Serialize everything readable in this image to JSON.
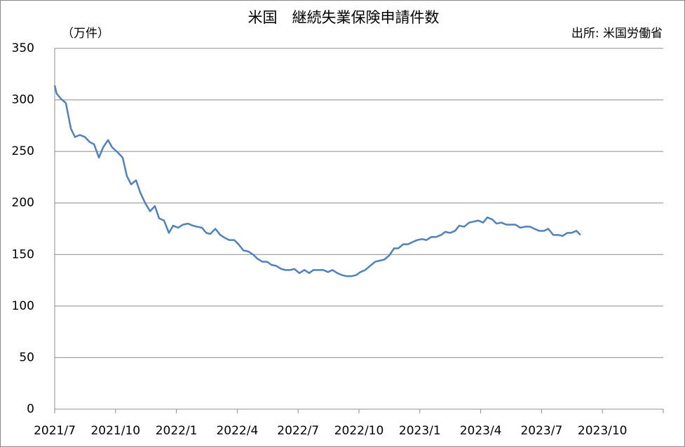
{
  "chart_data": {
    "type": "line",
    "title": "米国　継続失業保険申請件数",
    "y_unit": "（万件）",
    "source": "出所: 米国労働省",
    "ylim": [
      0,
      350
    ],
    "yticks": [
      0,
      50,
      100,
      150,
      200,
      250,
      300,
      350
    ],
    "xlim": [
      0,
      30
    ],
    "xticks": [
      {
        "value": 0,
        "label": "2021/7"
      },
      {
        "value": 3,
        "label": "2021/10"
      },
      {
        "value": 6,
        "label": "2022/1"
      },
      {
        "value": 9,
        "label": "2022/4"
      },
      {
        "value": 12,
        "label": "2022/7"
      },
      {
        "value": 15,
        "label": "2022/10"
      },
      {
        "value": 18,
        "label": "2023/1"
      },
      {
        "value": 21,
        "label": "2023/4"
      },
      {
        "value": 24,
        "label": "2023/7"
      },
      {
        "value": 27,
        "label": "2023/10"
      }
    ],
    "grid": true,
    "series": [
      {
        "name": "継続失業保険申請件数",
        "color": "#4f81bd",
        "x": [
          0,
          0.1,
          0.31,
          0.55,
          0.8,
          1.0,
          1.24,
          1.49,
          1.73,
          1.94,
          2.18,
          2.39,
          2.63,
          2.83,
          3.11,
          3.35,
          3.56,
          3.77,
          4.01,
          4.22,
          4.46,
          4.7,
          4.94,
          5.15,
          5.39,
          5.63,
          5.84,
          6.08,
          6.33,
          6.57,
          6.81,
          7.02,
          7.26,
          7.47,
          7.67,
          7.92,
          8.16,
          8.4,
          8.61,
          8.85,
          9.06,
          9.3,
          9.54,
          9.78,
          9.99,
          10.24,
          10.47,
          10.68,
          10.92,
          11.17,
          11.37,
          11.61,
          11.82,
          12.06,
          12.31,
          12.55,
          12.75,
          13.0,
          13.24,
          13.48,
          13.69,
          13.93,
          14.17,
          14.38,
          14.62,
          14.86,
          15.07,
          15.31,
          15.55,
          15.8,
          16.0,
          16.24,
          16.49,
          16.73,
          16.94,
          17.18,
          17.42,
          17.63,
          17.87,
          18.11,
          18.32,
          18.56,
          18.8,
          19.05,
          19.25,
          19.5,
          19.74,
          19.94,
          20.19,
          20.43,
          20.67,
          20.88,
          21.12,
          21.33,
          21.57,
          21.78,
          22.02,
          22.26,
          22.5,
          22.71,
          22.95,
          23.19,
          23.44,
          23.64,
          23.88,
          24.13,
          24.33,
          24.58,
          24.82,
          25.03,
          25.27,
          25.48,
          25.72,
          25.92
        ],
        "values": [
          314,
          306,
          301,
          297,
          272,
          264,
          266,
          264,
          259,
          257,
          244,
          254,
          261,
          254,
          249,
          244,
          226,
          218,
          222,
          210,
          200,
          192,
          197,
          185,
          183,
          171,
          178,
          176,
          179,
          180,
          178,
          177,
          176,
          171,
          170,
          175,
          169,
          166,
          164,
          164,
          160,
          154,
          153,
          150,
          146,
          143,
          143,
          140,
          139,
          136,
          135,
          135,
          136,
          132,
          135,
          132,
          135,
          135,
          135,
          133,
          135,
          132,
          130,
          129,
          129,
          130,
          133,
          135,
          139,
          143,
          144,
          145,
          149,
          156,
          156,
          160,
          160,
          162,
          164,
          165,
          164,
          167,
          167,
          169,
          172,
          171,
          173,
          178,
          177,
          181,
          182,
          183,
          181,
          186,
          184,
          180,
          181,
          179,
          179,
          179,
          176,
          177,
          177,
          175,
          173,
          173,
          175,
          169,
          169,
          168,
          171,
          171,
          173,
          169
        ]
      }
    ]
  }
}
